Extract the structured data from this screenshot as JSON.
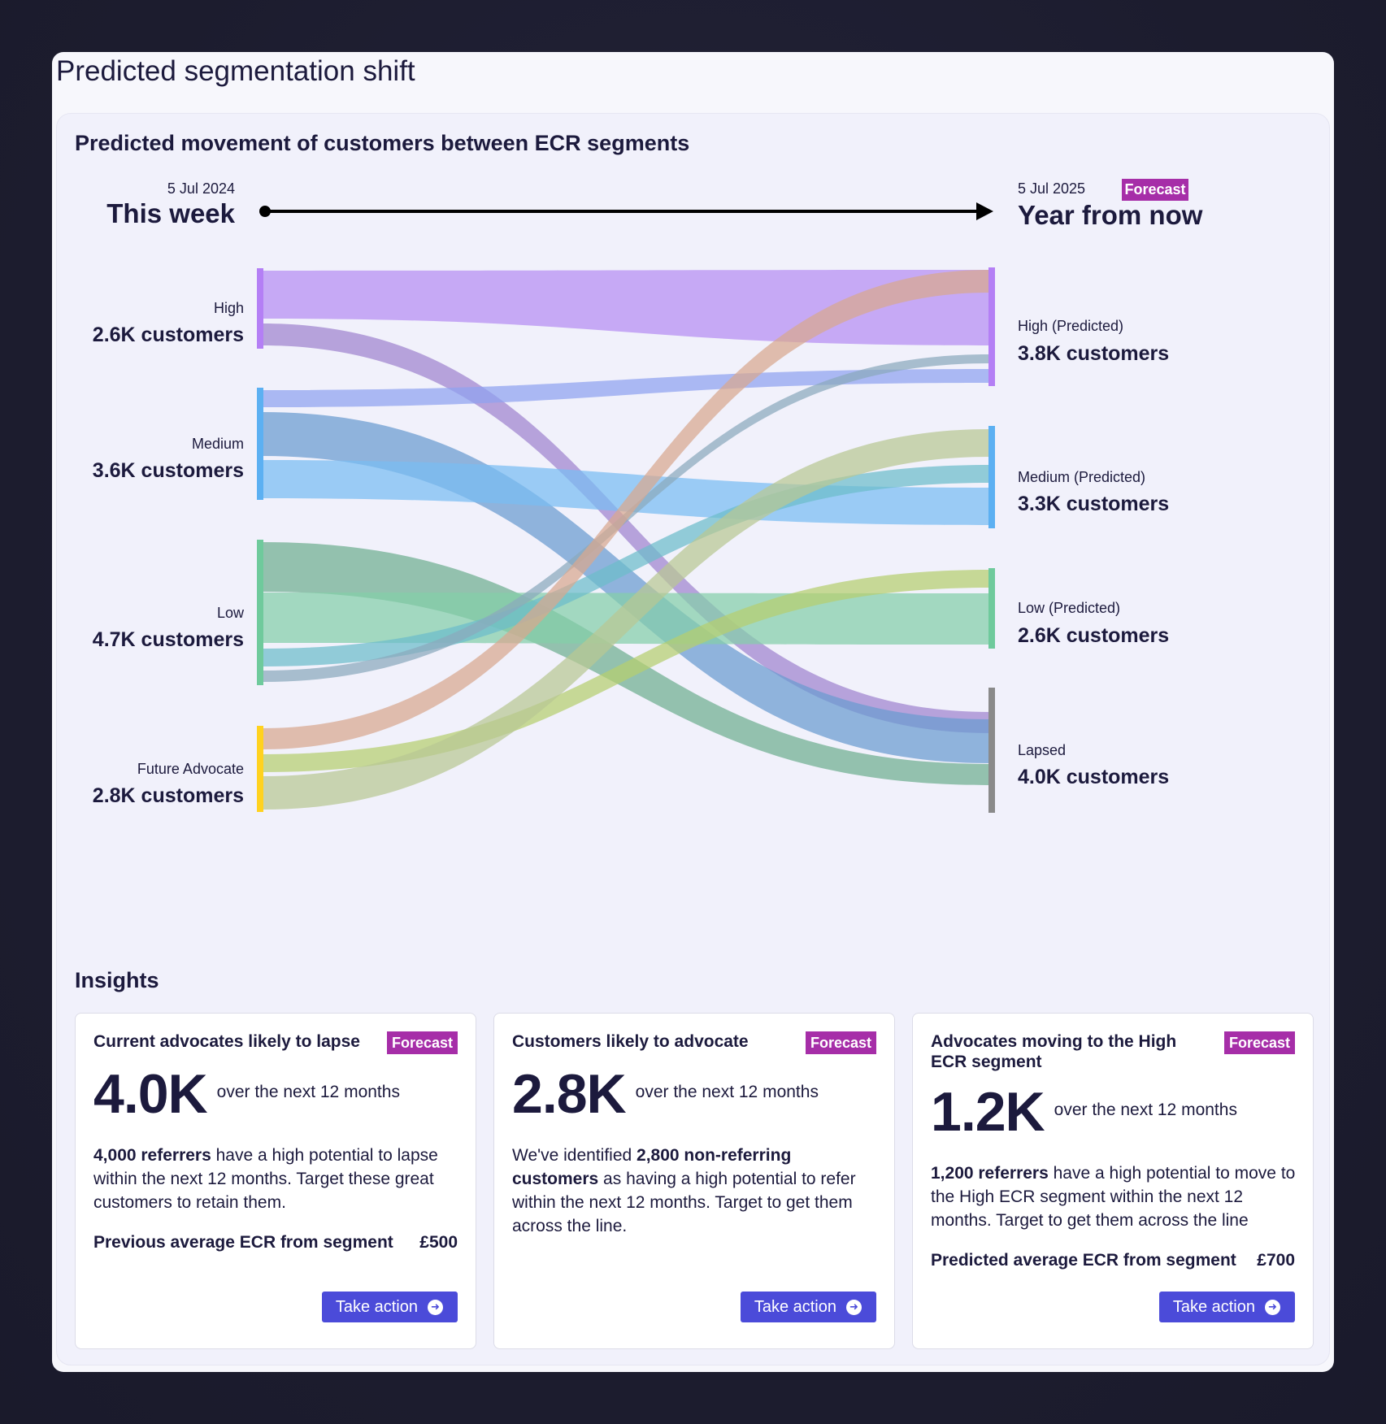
{
  "page": {
    "title": "Predicted segmentation shift"
  },
  "diagram": {
    "title": "Predicted movement of customers between ECR segments",
    "start": {
      "date": "5 Jul 2024",
      "label": "This week"
    },
    "end": {
      "date": "5 Jul 2025",
      "label": "Year from now",
      "badge": "Forecast"
    },
    "sources": [
      {
        "id": "high",
        "name": "High",
        "value": "2.6K customers",
        "color": "#b47ff5"
      },
      {
        "id": "medium",
        "name": "Medium",
        "value": "3.6K customers",
        "color": "#5cb0f2"
      },
      {
        "id": "low",
        "name": "Low",
        "value": "4.7K customers",
        "color": "#6fca9c"
      },
      {
        "id": "future",
        "name": "Future Advocate",
        "value": "2.8K customers",
        "color": "#ffd21f"
      }
    ],
    "targets": [
      {
        "id": "high",
        "name": "High (Predicted)",
        "value": "3.8K customers",
        "color": "#b47ff5"
      },
      {
        "id": "medium",
        "name": "Medium (Predicted)",
        "value": "3.3K customers",
        "color": "#5cb0f2"
      },
      {
        "id": "low",
        "name": "Low (Predicted)",
        "value": "2.6K customers",
        "color": "#6fca9c"
      },
      {
        "id": "lapsed",
        "name": "Lapsed",
        "value": "4.0K customers",
        "color": "#8a8a8a"
      }
    ],
    "flows": [
      {
        "from": "high",
        "to": "high",
        "color": "#b68ef3"
      },
      {
        "from": "high",
        "to": "lapsed",
        "color": "#9f83cf"
      },
      {
        "from": "medium",
        "to": "high",
        "color": "#8fa2f0"
      },
      {
        "from": "medium",
        "to": "lapsed",
        "color": "#6a9bd0"
      },
      {
        "from": "medium",
        "to": "medium",
        "color": "#78bcf3"
      },
      {
        "from": "low",
        "to": "lapsed",
        "color": "#6fae90"
      },
      {
        "from": "low",
        "to": "low",
        "color": "#84cfa9"
      },
      {
        "from": "low",
        "to": "medium",
        "color": "#6cbccb"
      },
      {
        "from": "low",
        "to": "high",
        "color": "#8ba9bd"
      },
      {
        "from": "future",
        "to": "high",
        "color": "#d8a78f"
      },
      {
        "from": "future",
        "to": "low",
        "color": "#b5cf6f"
      },
      {
        "from": "future",
        "to": "medium",
        "color": "#b9c893"
      }
    ]
  },
  "insights": {
    "title": "Insights",
    "cards": [
      {
        "title": "Current advocates likely to lapse",
        "badge": "Forecast",
        "value": "4.0K",
        "period": "over the next 12 months",
        "desc_bold": "4,000 referrers",
        "desc_rest": " have a high potential to lapse within the next 12 months. Target these great customers to retain them.",
        "stat_label": "Previous average ECR from segment",
        "stat_value": "£500",
        "action": "Take action"
      },
      {
        "title": "Customers likely to advocate",
        "badge": "Forecast",
        "value": "2.8K",
        "period": "over the next 12 months",
        "desc_pre": "We've identified ",
        "desc_bold": "2,800 non-referring customers",
        "desc_rest": " as having a high potential to refer within the next 12 months. Target to get them across the line.",
        "action": "Take action"
      },
      {
        "title": "Advocates moving to the High ECR segment",
        "badge": "Forecast",
        "value": "1.2K",
        "period": "over the next 12 months",
        "desc_bold": "1,200 referrers",
        "desc_rest": " have a high potential to move to the High ECR segment within the next 12 months. Target to get them across the line",
        "stat_label": "Predicted average ECR from segment",
        "stat_value": "£700",
        "action": "Take action"
      }
    ]
  }
}
